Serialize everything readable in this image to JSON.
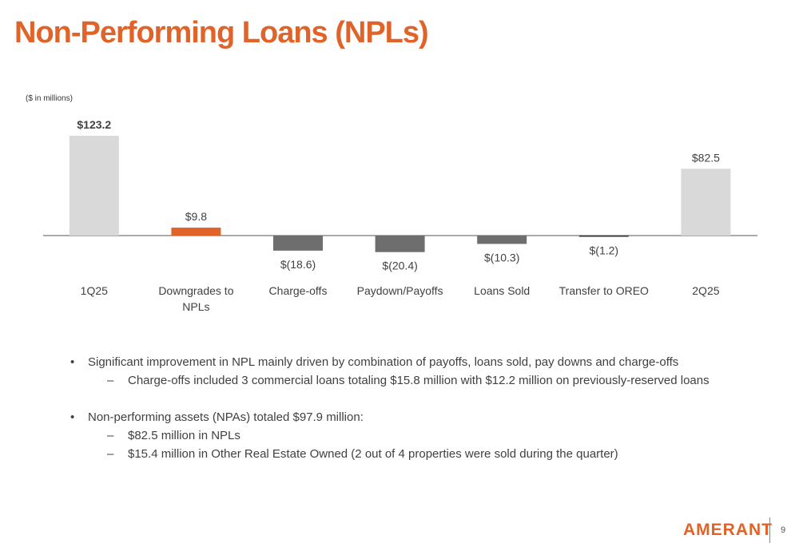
{
  "title": "Non-Performing Loans (NPLs)",
  "units_note": "($ in millions)",
  "bullets": [
    {
      "text": "Significant improvement in NPL mainly driven by combination of payoffs, loans sold, pay downs and charge-offs",
      "sub": [
        "Charge-offs included 3 commercial loans totaling $15.8 million with $12.2 million on previously-reserved loans"
      ]
    },
    {
      "text": "Non-performing assets (NPAs) totaled $97.9 million:",
      "sub": [
        "$82.5 million in NPLs",
        "$15.4 million in Other Real Estate Owned (2 out of 4 properties were sold during the quarter)"
      ]
    }
  ],
  "logo": "AMERANT",
  "page_number": "9",
  "colors": {
    "title": "#e0642a",
    "total_bar": "#d9d9d9",
    "increase_bar": "#e0642a",
    "decrease_bar": "#6e6e6e",
    "axis": "#555555"
  },
  "chart_data": {
    "type": "bar",
    "subtype": "waterfall",
    "categories": [
      "1Q25",
      "Downgrades to NPLs",
      "Charge-offs",
      "Paydown/Payoffs",
      "Loans Sold",
      "Transfer to OREO",
      "2Q25"
    ],
    "values": [
      123.2,
      9.8,
      -18.6,
      -20.4,
      -10.3,
      -1.2,
      82.5
    ],
    "value_labels": [
      "$123.2",
      "$9.8",
      "$(18.6)",
      "$(20.4)",
      "$(10.3)",
      "$(1.2)",
      "$82.5"
    ],
    "kinds": [
      "total",
      "increase",
      "decrease",
      "decrease",
      "decrease",
      "decrease",
      "total"
    ],
    "ylabel": "($ in millions)",
    "grid": false,
    "legend": "none"
  }
}
